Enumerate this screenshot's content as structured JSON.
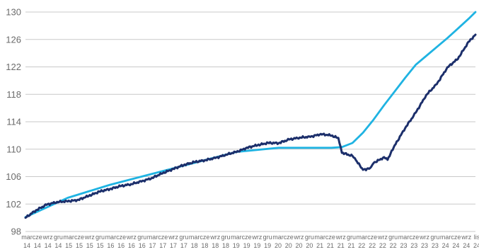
{
  "chart_data": {
    "type": "line",
    "title": "",
    "xlabel": "",
    "ylabel": "",
    "ylim": [
      98,
      130
    ],
    "yticks": [
      98,
      102,
      106,
      110,
      114,
      118,
      122,
      126,
      130
    ],
    "grid": true,
    "legend": "none",
    "x_ticks": [
      {
        "month": "mar",
        "year": "14"
      },
      {
        "month": "cze",
        "year": "14"
      },
      {
        "month": "wrz",
        "year": "14"
      },
      {
        "month": "gru",
        "year": "14"
      },
      {
        "month": "mar",
        "year": "15"
      },
      {
        "month": "cze",
        "year": "15"
      },
      {
        "month": "wrz",
        "year": "15"
      },
      {
        "month": "gru",
        "year": "15"
      },
      {
        "month": "mar",
        "year": "16"
      },
      {
        "month": "cze",
        "year": "16"
      },
      {
        "month": "wrz",
        "year": "16"
      },
      {
        "month": "gru",
        "year": "16"
      },
      {
        "month": "mar",
        "year": "17"
      },
      {
        "month": "cze",
        "year": "17"
      },
      {
        "month": "wrz",
        "year": "17"
      },
      {
        "month": "gru",
        "year": "17"
      },
      {
        "month": "mar",
        "year": "18"
      },
      {
        "month": "cze",
        "year": "18"
      },
      {
        "month": "wrz",
        "year": "18"
      },
      {
        "month": "gru",
        "year": "18"
      },
      {
        "month": "mar",
        "year": "19"
      },
      {
        "month": "cze",
        "year": "19"
      },
      {
        "month": "wrz",
        "year": "19"
      },
      {
        "month": "gru",
        "year": "19"
      },
      {
        "month": "mar",
        "year": "20"
      },
      {
        "month": "cze",
        "year": "20"
      },
      {
        "month": "wrz",
        "year": "20"
      },
      {
        "month": "gru",
        "year": "20"
      },
      {
        "month": "mar",
        "year": "21"
      },
      {
        "month": "cze",
        "year": "21"
      },
      {
        "month": "wrz",
        "year": "21"
      },
      {
        "month": "gru",
        "year": "21"
      },
      {
        "month": "mar",
        "year": "22"
      },
      {
        "month": "cze",
        "year": "22"
      },
      {
        "month": "wrz",
        "year": "22"
      },
      {
        "month": "gru",
        "year": "22"
      },
      {
        "month": "mar",
        "year": "23"
      },
      {
        "month": "cze",
        "year": "23"
      },
      {
        "month": "wrz",
        "year": "23"
      },
      {
        "month": "gru",
        "year": "23"
      },
      {
        "month": "mar",
        "year": "24"
      },
      {
        "month": "cze",
        "year": "24"
      },
      {
        "month": "wrz",
        "year": "24"
      },
      {
        "month": "lis",
        "year": "24"
      }
    ],
    "series": [
      {
        "color": "#1fb3e2",
        "x": [
          "2014-03",
          "2015-03",
          "2016-03",
          "2017-03",
          "2018-03",
          "2019-03",
          "2020-03",
          "2020-12",
          "2021-06",
          "2021-09",
          "2021-12",
          "2022-03",
          "2022-06",
          "2022-09",
          "2022-12",
          "2023-03",
          "2023-06",
          "2023-09",
          "2023-12",
          "2024-03",
          "2024-06",
          "2024-09",
          "2024-11"
        ],
        "values": [
          100.1,
          102.9,
          104.8,
          106.4,
          108.0,
          109.6,
          110.2,
          110.2,
          110.2,
          110.3,
          110.9,
          112.4,
          114.3,
          116.4,
          118.4,
          120.4,
          122.3,
          123.6,
          124.9,
          126.2,
          127.6,
          129.0,
          130.0
        ]
      },
      {
        "color": "#1c2f6b",
        "x": [
          "2014-03",
          "2014-06",
          "2014-09",
          "2014-12",
          "2015-03",
          "2015-06",
          "2015-09",
          "2015-12",
          "2016-03",
          "2016-06",
          "2016-09",
          "2016-12",
          "2017-03",
          "2017-06",
          "2017-09",
          "2017-12",
          "2018-03",
          "2018-06",
          "2018-09",
          "2018-12",
          "2019-03",
          "2019-06",
          "2019-09",
          "2019-12",
          "2020-03",
          "2020-06",
          "2020-09",
          "2020-12",
          "2021-03",
          "2021-06",
          "2021-08",
          "2021-09",
          "2021-12",
          "2022-01",
          "2022-03",
          "2022-05",
          "2022-06",
          "2022-09",
          "2022-10",
          "2022-12",
          "2023-03",
          "2023-06",
          "2023-09",
          "2023-12",
          "2024-03",
          "2024-06",
          "2024-09",
          "2024-11"
        ],
        "values": [
          100.0,
          101.1,
          101.9,
          102.3,
          102.4,
          102.6,
          103.2,
          103.8,
          104.2,
          104.6,
          104.9,
          105.3,
          105.8,
          106.5,
          107.1,
          107.7,
          108.1,
          108.4,
          108.7,
          109.2,
          109.6,
          110.2,
          110.6,
          110.9,
          110.9,
          111.4,
          111.7,
          111.8,
          112.2,
          112.0,
          111.6,
          109.5,
          109.0,
          108.4,
          107.0,
          107.2,
          108.0,
          108.8,
          108.5,
          110.5,
          113.1,
          115.3,
          117.9,
          119.5,
          121.9,
          123.2,
          125.6,
          126.7
        ]
      }
    ]
  }
}
